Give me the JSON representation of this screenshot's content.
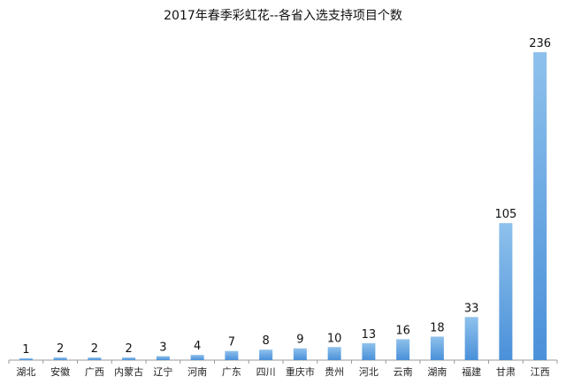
{
  "chart_data": {
    "type": "bar",
    "title": "2017年春季彩虹花--各省入选支持项目个数",
    "xlabel": "",
    "ylabel": "",
    "categories": [
      "湖北",
      "安徽",
      "广西",
      "内蒙古",
      "辽宁",
      "河南",
      "广东",
      "四川",
      "重庆市",
      "贵州",
      "河北",
      "云南",
      "湖南",
      "福建",
      "甘肃",
      "江西"
    ],
    "values": [
      1,
      2,
      2,
      2,
      3,
      4,
      7,
      8,
      9,
      10,
      13,
      16,
      18,
      33,
      105,
      236
    ],
    "ylim": [
      0,
      236
    ],
    "grid": false,
    "legend": "none",
    "colors": {
      "bar_top": "#8ec1ec",
      "bar_bottom": "#4a90d9",
      "axis": "#9a9a9a",
      "text": "#111111"
    }
  }
}
